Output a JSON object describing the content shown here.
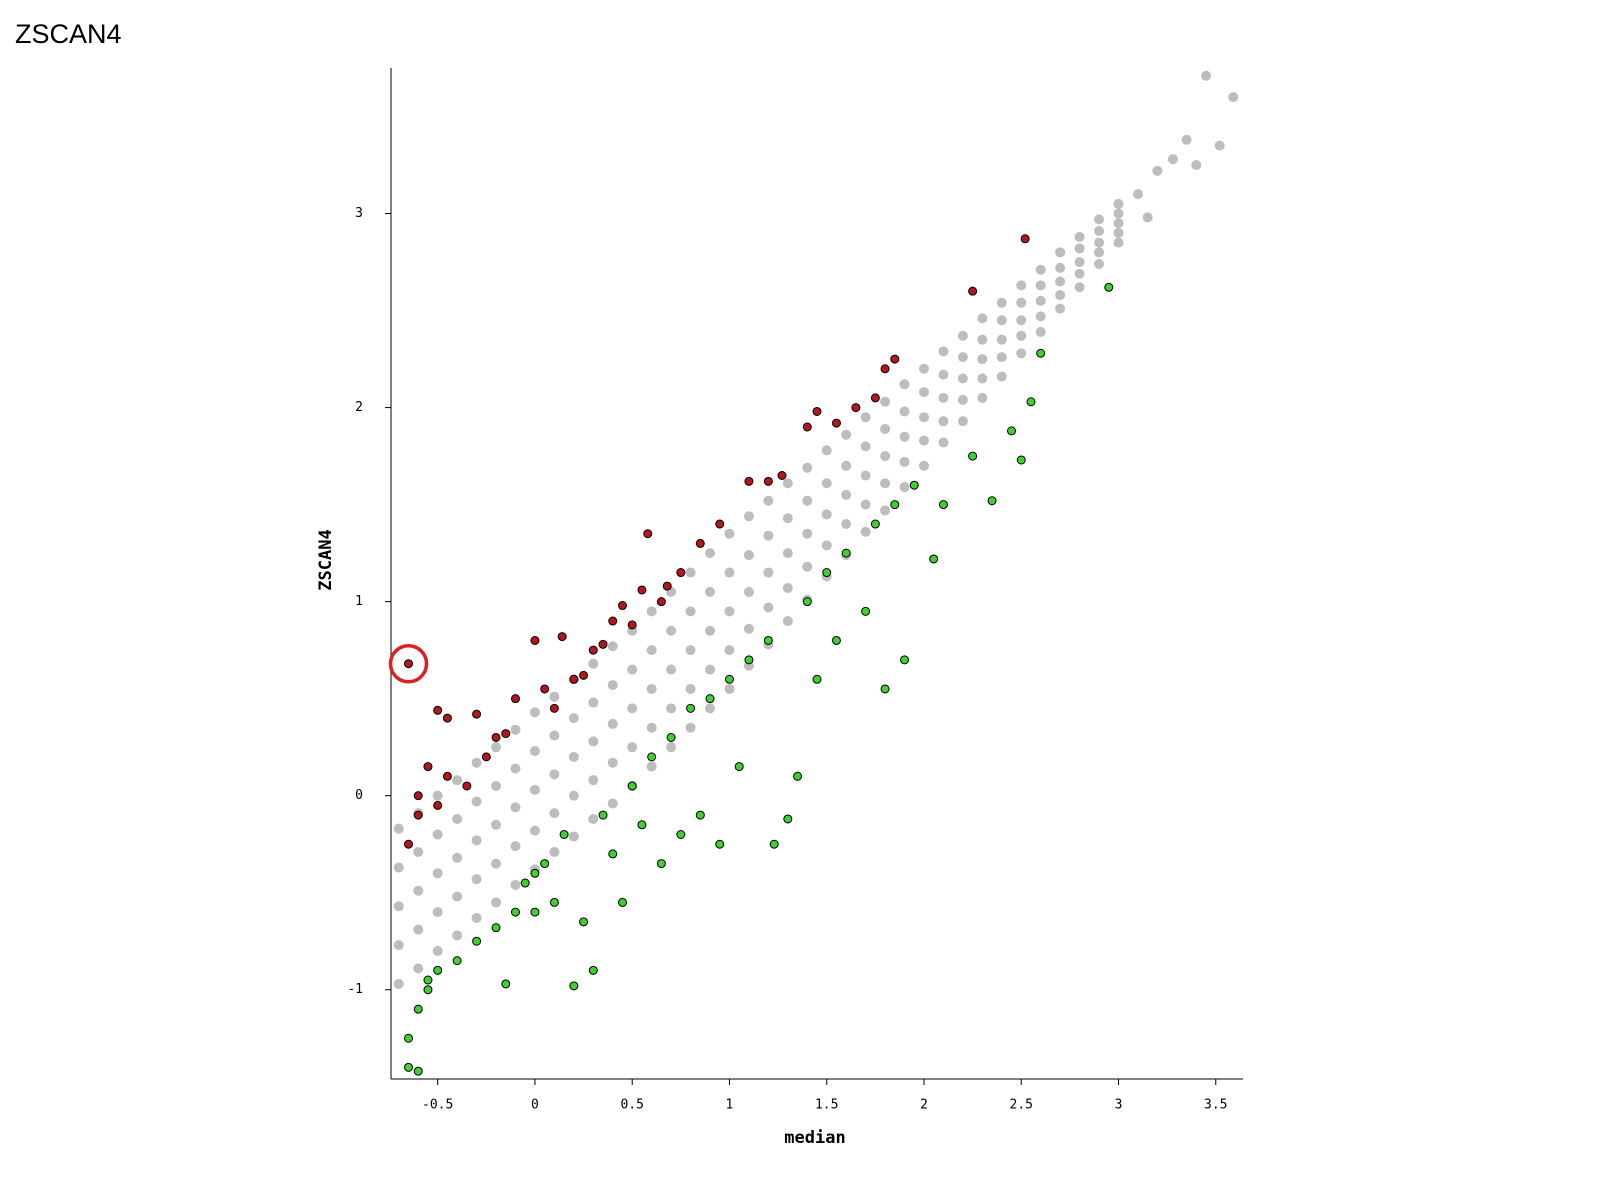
{
  "page_title": "ZSCAN4",
  "chart_data": {
    "type": "scatter",
    "xlabel": "median",
    "ylabel": "ZSCAN4",
    "xlim": [
      -0.74,
      3.64
    ],
    "ylim": [
      -1.46,
      3.75
    ],
    "xticks": [
      -0.5,
      0,
      0.5,
      1,
      1.5,
      2,
      2.5,
      3,
      3.5
    ],
    "yticks": [
      -1,
      0,
      1,
      2,
      3
    ],
    "highlight_point": {
      "x": -0.65,
      "y": 0.68,
      "color": "#e02020"
    },
    "series": [
      {
        "color": "#bdbdbd",
        "outline": false,
        "x": [
          -0.7,
          -0.7,
          -0.7,
          -0.7,
          -0.7,
          -0.6,
          -0.6,
          -0.6,
          -0.6,
          -0.6,
          -0.5,
          -0.5,
          -0.5,
          -0.5,
          -0.5,
          -0.4,
          -0.4,
          -0.4,
          -0.4,
          -0.4,
          -0.3,
          -0.3,
          -0.3,
          -0.3,
          -0.3,
          -0.2,
          -0.2,
          -0.2,
          -0.2,
          -0.2,
          -0.1,
          -0.1,
          -0.1,
          -0.1,
          -0.1,
          0,
          0,
          0,
          0,
          0,
          0.1,
          0.1,
          0.1,
          0.1,
          0.1,
          0.2,
          0.2,
          0.2,
          0.2,
          0.2,
          0.3,
          0.3,
          0.3,
          0.3,
          0.3,
          0.4,
          0.4,
          0.4,
          0.4,
          0.4,
          0.5,
          0.5,
          0.5,
          0.5,
          0.5,
          0.6,
          0.6,
          0.6,
          0.6,
          0.6,
          0.7,
          0.7,
          0.7,
          0.7,
          0.7,
          0.8,
          0.8,
          0.8,
          0.8,
          0.8,
          0.9,
          0.9,
          0.9,
          0.9,
          0.9,
          1.0,
          1.0,
          1.0,
          1.0,
          1.0,
          1.1,
          1.1,
          1.1,
          1.1,
          1.1,
          1.2,
          1.2,
          1.2,
          1.2,
          1.2,
          1.3,
          1.3,
          1.3,
          1.3,
          1.3,
          1.4,
          1.4,
          1.4,
          1.4,
          1.4,
          1.5,
          1.5,
          1.5,
          1.5,
          1.5,
          1.6,
          1.6,
          1.6,
          1.6,
          1.6,
          1.7,
          1.7,
          1.7,
          1.7,
          1.7,
          1.8,
          1.8,
          1.8,
          1.8,
          1.8,
          1.9,
          1.9,
          1.9,
          1.9,
          1.9,
          2.0,
          2.0,
          2.0,
          2.0,
          2.0,
          2.1,
          2.1,
          2.1,
          2.1,
          2.1,
          2.2,
          2.2,
          2.2,
          2.2,
          2.2,
          2.3,
          2.3,
          2.3,
          2.3,
          2.3,
          2.4,
          2.4,
          2.4,
          2.4,
          2.4,
          2.5,
          2.5,
          2.5,
          2.5,
          2.5,
          2.6,
          2.6,
          2.6,
          2.6,
          2.6,
          2.7,
          2.7,
          2.7,
          2.7,
          2.7,
          2.8,
          2.8,
          2.8,
          2.8,
          2.8,
          2.9,
          2.9,
          2.9,
          2.9,
          2.9,
          3.0,
          3.0,
          3.0,
          3.0,
          3.0,
          3.1,
          3.15,
          3.2,
          3.28,
          3.35,
          3.4,
          3.45,
          3.52,
          3.59
        ],
        "y": [
          -0.97,
          -0.77,
          -0.57,
          -0.37,
          -0.17,
          -0.89,
          -0.69,
          -0.49,
          -0.29,
          -0.09,
          -0.8,
          -0.6,
          -0.4,
          -0.2,
          0.0,
          -0.72,
          -0.52,
          -0.32,
          -0.12,
          0.08,
          -0.63,
          -0.43,
          -0.23,
          -0.03,
          0.17,
          -0.55,
          -0.35,
          -0.15,
          0.05,
          0.25,
          -0.46,
          -0.26,
          -0.06,
          0.14,
          0.34,
          -0.38,
          -0.18,
          0.03,
          0.23,
          0.43,
          -0.29,
          -0.09,
          0.11,
          0.31,
          0.51,
          -0.21,
          0,
          0.2,
          0.4,
          0.6,
          -0.12,
          0.08,
          0.28,
          0.48,
          0.68,
          -0.04,
          0.17,
          0.37,
          0.57,
          0.77,
          0.05,
          0.25,
          0.45,
          0.65,
          0.85,
          0.15,
          0.35,
          0.55,
          0.75,
          0.95,
          0.25,
          0.45,
          0.65,
          0.85,
          1.05,
          0.35,
          0.55,
          0.75,
          0.95,
          1.15,
          0.45,
          0.65,
          0.85,
          1.05,
          1.25,
          0.55,
          0.75,
          0.95,
          1.15,
          1.35,
          0.67,
          0.86,
          1.05,
          1.24,
          1.44,
          0.78,
          0.97,
          1.15,
          1.34,
          1.52,
          0.9,
          1.07,
          1.25,
          1.43,
          1.61,
          1.01,
          1.18,
          1.35,
          1.52,
          1.69,
          1.13,
          1.29,
          1.45,
          1.61,
          1.78,
          1.24,
          1.4,
          1.55,
          1.7,
          1.86,
          1.36,
          1.5,
          1.65,
          1.8,
          1.95,
          1.47,
          1.61,
          1.75,
          1.89,
          2.03,
          1.59,
          1.72,
          1.85,
          1.98,
          2.12,
          1.7,
          1.83,
          1.95,
          2.08,
          2.2,
          1.82,
          1.93,
          2.05,
          2.17,
          2.29,
          1.93,
          2.04,
          2.15,
          2.26,
          2.37,
          2.05,
          2.15,
          2.25,
          2.35,
          2.46,
          2.16,
          2.26,
          2.35,
          2.45,
          2.54,
          2.28,
          2.37,
          2.45,
          2.54,
          2.63,
          2.39,
          2.47,
          2.55,
          2.63,
          2.71,
          2.51,
          2.58,
          2.65,
          2.72,
          2.8,
          2.62,
          2.69,
          2.75,
          2.82,
          2.88,
          2.74,
          2.8,
          2.85,
          2.91,
          2.97,
          2.85,
          2.9,
          2.95,
          3.0,
          3.05,
          3.1,
          2.98,
          3.22,
          3.28,
          3.38,
          3.25,
          3.71,
          3.35,
          3.6
        ]
      },
      {
        "color": "#b3161b",
        "outline": true,
        "x": [
          -0.65,
          -0.5,
          -0.45,
          -0.3,
          -0.2,
          -0.1,
          0,
          0.14,
          0.05,
          0.2,
          0.3,
          0.35,
          0.4,
          0.45,
          0.55,
          0.58,
          0.65,
          0.75,
          0.85,
          0.95,
          1.1,
          1.2,
          1.27,
          1.4,
          1.45,
          1.55,
          1.65,
          1.75,
          1.8,
          1.85,
          2.25,
          2.52,
          -0.65,
          -0.6,
          -0.55,
          -0.6,
          -0.5,
          -0.45,
          -0.35,
          -0.25,
          -0.15,
          0.1,
          0.25,
          0.5,
          0.68
        ],
        "y": [
          0.68,
          0.44,
          0.4,
          0.42,
          0.3,
          0.5,
          0.8,
          0.82,
          0.55,
          0.6,
          0.75,
          0.78,
          0.9,
          0.98,
          1.06,
          1.35,
          1.0,
          1.15,
          1.3,
          1.4,
          1.62,
          1.62,
          1.65,
          1.9,
          1.98,
          1.92,
          2.0,
          2.05,
          2.2,
          2.25,
          2.6,
          2.87,
          -0.25,
          -0.1,
          0.15,
          0.0,
          -0.05,
          0.1,
          0.05,
          0.2,
          0.32,
          0.45,
          0.62,
          0.88,
          1.08
        ]
      },
      {
        "color": "#3fcf2f",
        "outline": true,
        "x": [
          -0.65,
          -0.6,
          -0.65,
          -0.6,
          -0.55,
          -0.5,
          -0.4,
          -0.3,
          -0.2,
          -0.15,
          -0.1,
          -0.05,
          0,
          0.05,
          0.1,
          0.15,
          0.2,
          0.25,
          0.3,
          0.35,
          0.45,
          0.5,
          0.55,
          0.6,
          0.65,
          0.7,
          0.75,
          0.8,
          0.85,
          0.9,
          0.95,
          1.0,
          1.05,
          1.1,
          1.2,
          1.23,
          1.3,
          1.35,
          1.4,
          1.45,
          1.5,
          1.55,
          1.6,
          1.7,
          1.75,
          1.8,
          1.85,
          1.9,
          1.95,
          2.05,
          2.1,
          2.25,
          2.35,
          2.45,
          2.5,
          2.55,
          2.6,
          2.95,
          -0.55,
          0.0,
          0.4
        ],
        "y": [
          -1.4,
          -1.42,
          -1.25,
          -1.1,
          -1.0,
          -0.9,
          -0.85,
          -0.75,
          -0.68,
          -0.97,
          -0.6,
          -0.45,
          -0.4,
          -0.35,
          -0.55,
          -0.2,
          -0.98,
          -0.65,
          -0.9,
          -0.1,
          -0.55,
          0.05,
          -0.15,
          0.2,
          -0.35,
          0.3,
          -0.2,
          0.45,
          -0.1,
          0.5,
          -0.25,
          0.6,
          0.15,
          0.7,
          0.8,
          -0.25,
          -0.12,
          0.1,
          1.0,
          0.6,
          1.15,
          0.8,
          1.25,
          0.95,
          1.4,
          0.55,
          1.5,
          0.7,
          1.6,
          1.22,
          1.5,
          1.75,
          1.52,
          1.88,
          1.73,
          2.03,
          2.28,
          2.62,
          -0.95,
          -0.6,
          -0.3
        ]
      }
    ]
  }
}
